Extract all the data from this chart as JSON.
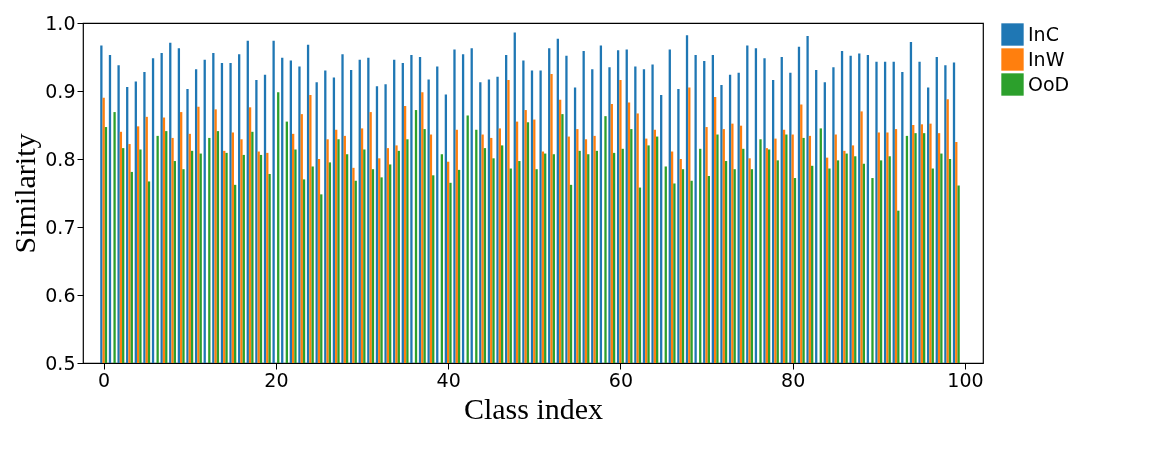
{
  "chart_data": {
    "type": "bar",
    "xlabel": "Class index",
    "ylabel": "Similarity",
    "x": [
      0,
      1,
      2,
      3,
      4,
      5,
      6,
      7,
      8,
      9,
      10,
      11,
      12,
      13,
      14,
      15,
      16,
      17,
      18,
      19,
      20,
      21,
      22,
      23,
      24,
      25,
      26,
      27,
      28,
      29,
      30,
      31,
      32,
      33,
      34,
      35,
      36,
      37,
      38,
      39,
      40,
      41,
      42,
      43,
      44,
      45,
      46,
      47,
      48,
      49,
      50,
      51,
      52,
      53,
      54,
      55,
      56,
      57,
      58,
      59,
      60,
      61,
      62,
      63,
      64,
      65,
      66,
      67,
      68,
      69,
      70,
      71,
      72,
      73,
      74,
      75,
      76,
      77,
      78,
      79,
      80,
      81,
      82,
      83,
      84,
      85,
      86,
      87,
      88,
      89,
      90,
      91,
      92,
      93,
      94,
      95,
      96,
      97,
      98,
      99
    ],
    "xlim": [
      -2.4,
      102.1
    ],
    "xticks": [
      0,
      20,
      40,
      60,
      80,
      100
    ],
    "ylim": [
      0.5,
      1.0
    ],
    "yticks": [
      0.5,
      0.6,
      0.7,
      0.8,
      0.9,
      {
        "value": 1,
        "label": "1.0"
      }
    ],
    "grid": false,
    "legend": "right",
    "series": [
      {
        "name": "InC",
        "color": "#1f77b4",
        "values": [
          0.967,
          0.953,
          0.938,
          0.906,
          0.914,
          0.928,
          0.948,
          0.956,
          0.971,
          0.963,
          0.903,
          0.932,
          0.946,
          0.956,
          0.941,
          0.941,
          0.954,
          0.974,
          0.916,
          0.924,
          0.974,
          0.949,
          0.945,
          0.936,
          0.968,
          0.913,
          0.93,
          0.92,
          0.954,
          0.931,
          0.946,
          0.949,
          0.907,
          0.91,
          0.946,
          0.941,
          0.953,
          0.95,
          0.917,
          0.936,
          0.895,
          0.961,
          0.954,
          0.963,
          0.913,
          0.917,
          0.921,
          0.953,
          0.986,
          0.945,
          0.93,
          0.93,
          0.963,
          0.977,
          0.952,
          0.905,
          0.959,
          0.932,
          0.967,
          0.935,
          0.96,
          0.961,
          0.936,
          0.932,
          0.939,
          0.894,
          0.961,
          0.903,
          0.982,
          0.953,
          0.944,
          0.953,
          0.909,
          0.924,
          0.927,
          0.967,
          0.963,
          0.948,
          0.916,
          0.95,
          0.927,
          0.965,
          0.981,
          0.931,
          0.913,
          0.935,
          0.959,
          0.952,
          0.955,
          0.953,
          0.943,
          0.943,
          0.943,
          0.928,
          0.972,
          0.943,
          0.905,
          0.95,
          0.938,
          0.942
        ]
      },
      {
        "name": "InW",
        "color": "#ff7f0e",
        "values": [
          0.89,
          null,
          0.84,
          0.822,
          0.848,
          0.862,
          null,
          0.861,
          0.831,
          0.869,
          0.837,
          0.877,
          null,
          0.873,
          0.812,
          0.839,
          0.829,
          0.876,
          0.811,
          0.809,
          null,
          null,
          0.837,
          0.866,
          0.894,
          0.8,
          0.829,
          0.843,
          0.834,
          0.787,
          0.845,
          0.869,
          0.801,
          0.816,
          0.82,
          0.878,
          null,
          0.898,
          0.836,
          null,
          0.796,
          0.843,
          null,
          null,
          0.836,
          0.831,
          0.845,
          0.916,
          0.855,
          0.872,
          0.858,
          0.811,
          0.925,
          0.887,
          0.833,
          0.844,
          0.829,
          0.834,
          null,
          0.881,
          0.916,
          0.883,
          0.867,
          0.83,
          0.843,
          null,
          0.811,
          0.8,
          0.905,
          null,
          0.847,
          0.891,
          0.844,
          0.852,
          0.849,
          0.801,
          null,
          0.816,
          0.83,
          0.843,
          0.836,
          0.88,
          0.834,
          null,
          0.802,
          0.836,
          0.812,
          0.82,
          0.87,
          null,
          0.839,
          0.839,
          0.844,
          null,
          0.85,
          0.851,
          0.852,
          0.838,
          0.888,
          0.825
        ]
      },
      {
        "name": "OoD",
        "color": "#2ca02c",
        "values": [
          0.847,
          0.869,
          0.816,
          0.781,
          0.814,
          0.767,
          0.834,
          0.841,
          0.797,
          0.785,
          0.812,
          0.808,
          0.831,
          0.841,
          0.809,
          0.762,
          0.806,
          0.84,
          0.806,
          0.778,
          0.898,
          0.855,
          0.814,
          0.77,
          0.789,
          0.748,
          0.795,
          0.829,
          0.807,
          0.768,
          0.814,
          0.785,
          0.773,
          0.792,
          0.812,
          0.829,
          0.872,
          0.844,
          0.776,
          0.807,
          0.765,
          0.784,
          0.864,
          0.843,
          0.816,
          0.801,
          0.82,
          0.786,
          0.797,
          0.854,
          0.785,
          0.808,
          0.807,
          0.866,
          0.762,
          0.812,
          0.807,
          0.812,
          0.863,
          0.809,
          0.815,
          0.844,
          0.758,
          0.82,
          0.833,
          0.789,
          0.764,
          0.785,
          0.768,
          0.815,
          0.775,
          0.836,
          0.797,
          0.785,
          0.815,
          0.785,
          0.829,
          0.814,
          0.798,
          0.836,
          0.772,
          0.831,
          0.79,
          0.845,
          0.786,
          0.798,
          0.808,
          0.804,
          0.793,
          0.772,
          0.798,
          0.804,
          0.724,
          0.834,
          0.838,
          0.838,
          0.786,
          0.808,
          0.8,
          0.761
        ]
      }
    ]
  }
}
